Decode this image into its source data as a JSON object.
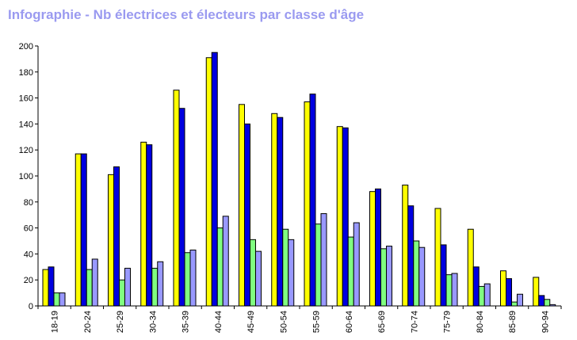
{
  "chart_data": {
    "type": "bar",
    "title": "Infographie - Nb électrices et électeurs par classe d'âge",
    "xlabel": "",
    "ylabel": "",
    "ylim": [
      0,
      200
    ],
    "yticks": [
      0,
      20,
      40,
      60,
      80,
      100,
      120,
      140,
      160,
      180,
      200
    ],
    "grid": false,
    "legend": "none",
    "categories": [
      "18-19",
      "20-24",
      "25-29",
      "30-34",
      "35-39",
      "40-44",
      "45-49",
      "50-54",
      "55-59",
      "60-64",
      "65-69",
      "70-74",
      "75-79",
      "80-84",
      "85-89",
      "90-94"
    ],
    "series": [
      {
        "color": "#ffff00",
        "values": [
          28,
          117,
          101,
          126,
          166,
          191,
          155,
          148,
          157,
          138,
          88,
          93,
          75,
          59,
          27,
          22
        ]
      },
      {
        "color": "#0000e0",
        "values": [
          30,
          117,
          107,
          124,
          152,
          195,
          140,
          145,
          163,
          137,
          90,
          77,
          47,
          30,
          21,
          8
        ]
      },
      {
        "color": "#80ff80",
        "values": [
          10,
          28,
          20,
          29,
          41,
          60,
          51,
          59,
          63,
          53,
          44,
          50,
          24,
          15,
          3,
          5
        ]
      },
      {
        "color": "#9999ff",
        "values": [
          10,
          36,
          29,
          34,
          43,
          69,
          42,
          51,
          71,
          64,
          46,
          45,
          25,
          17,
          9,
          1
        ]
      }
    ]
  }
}
